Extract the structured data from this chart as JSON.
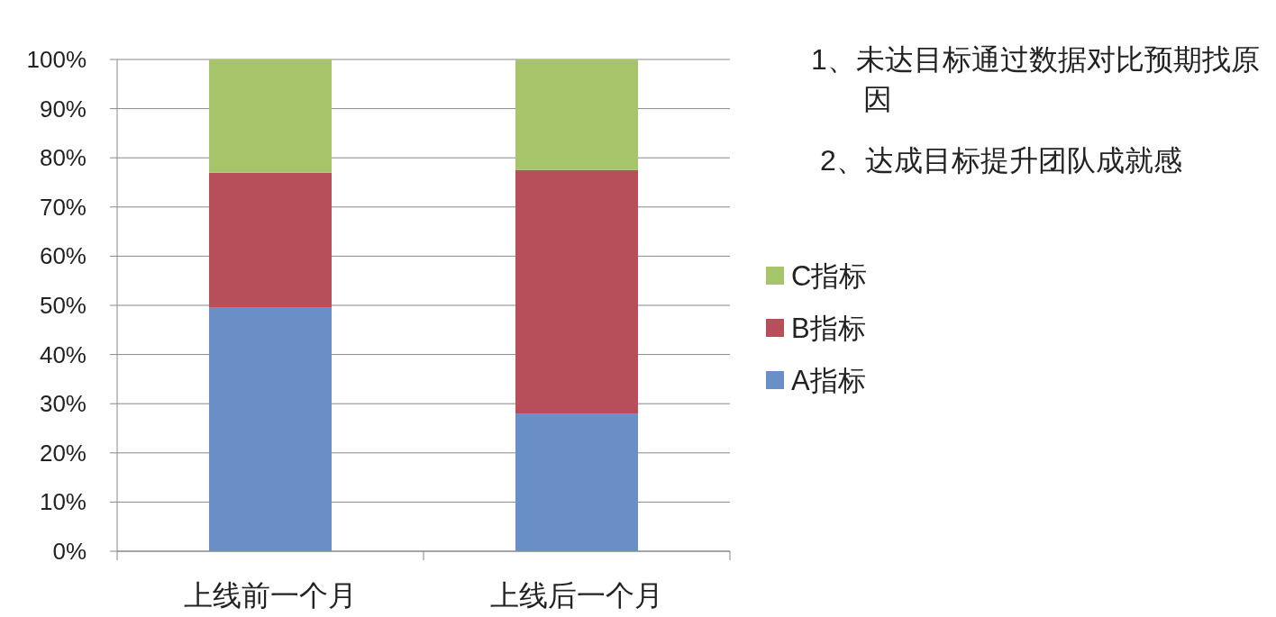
{
  "chart_data": {
    "type": "bar",
    "stacked": true,
    "categories": [
      "上线前一个月",
      "上线后一个月"
    ],
    "series": [
      {
        "name": "A指标",
        "color": "#6a8fc6",
        "values": [
          49.5,
          28
        ]
      },
      {
        "name": "B指标",
        "color": "#b74f5a",
        "values": [
          27.5,
          49.5
        ]
      },
      {
        "name": "C指标",
        "color": "#a6c56a",
        "values": [
          23,
          22.5
        ]
      }
    ],
    "ylim": [
      0,
      100
    ],
    "yticks": [
      {
        "value": 0,
        "label": "0%"
      },
      {
        "value": 10,
        "label": "10%"
      },
      {
        "value": 20,
        "label": "20%"
      },
      {
        "value": 30,
        "label": "30%"
      },
      {
        "value": 40,
        "label": "40%"
      },
      {
        "value": 50,
        "label": "50%"
      },
      {
        "value": 60,
        "label": "60%"
      },
      {
        "value": 70,
        "label": "70%"
      },
      {
        "value": 80,
        "label": "80%"
      },
      {
        "value": 90,
        "label": "90%"
      },
      {
        "value": 100,
        "label": "100%"
      }
    ],
    "grid": "y",
    "legend": "right",
    "annotations": [
      "1、未达目标通过数据对比预期找原因",
      "2、达成目标提升团队成就感"
    ]
  }
}
